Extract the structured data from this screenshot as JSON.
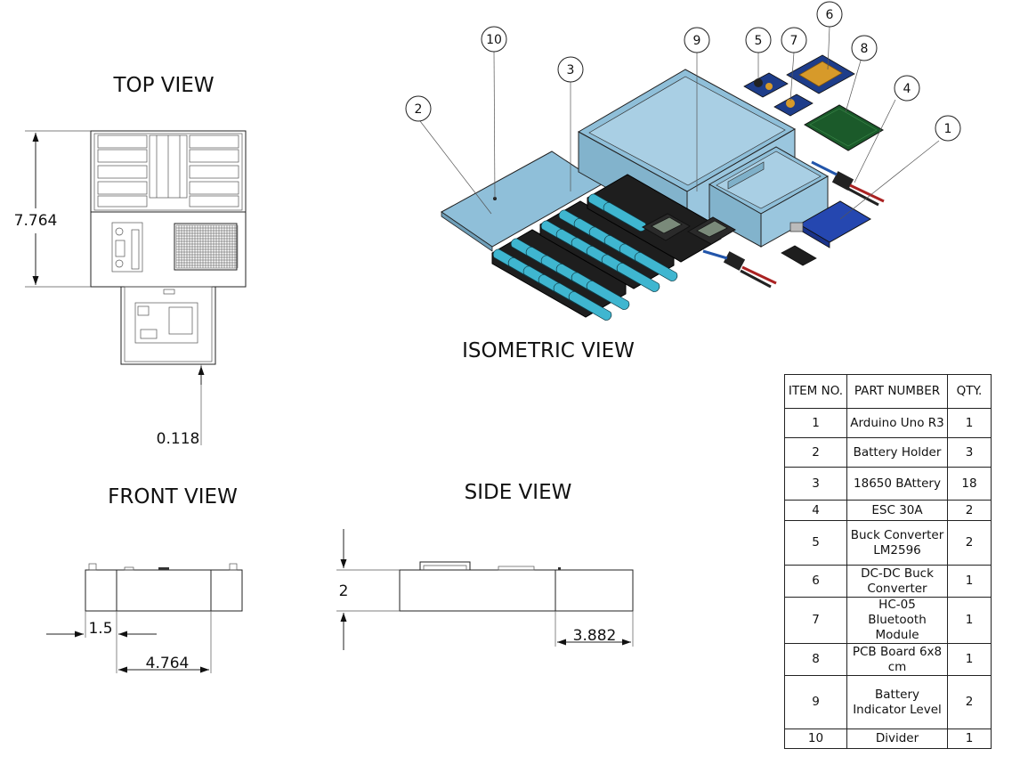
{
  "views": {
    "top": "TOP VIEW",
    "isometric": "ISOMETRIC VIEW",
    "front": "FRONT VIEW",
    "side": "SIDE VIEW"
  },
  "dimensions": {
    "top_height": "7.764",
    "top_offset": "0.118",
    "front_left": "1.5",
    "front_width": "4.764",
    "side_height": "2",
    "side_right": "3.882"
  },
  "balloons": [
    "1",
    "2",
    "3",
    "4",
    "5",
    "6",
    "7",
    "8",
    "9",
    "10"
  ],
  "bom": {
    "headers": {
      "item": "ITEM NO.",
      "part": "PART NUMBER",
      "qty": "QTY."
    },
    "rows": [
      {
        "item": "1",
        "part": "Arduino Uno R3",
        "qty": "1"
      },
      {
        "item": "2",
        "part": "Battery Holder",
        "qty": "3"
      },
      {
        "item": "3",
        "part": "18650 BAttery",
        "qty": "18"
      },
      {
        "item": "4",
        "part": "ESC 30A",
        "qty": "2"
      },
      {
        "item": "5",
        "part": "Buck Converter LM2596",
        "qty": "2"
      },
      {
        "item": "6",
        "part": "DC-DC Buck Converter",
        "qty": "1"
      },
      {
        "item": "7",
        "part": "HC-05 Bluetooth Module",
        "qty": "1"
      },
      {
        "item": "8",
        "part": "PCB Board 6x8 cm",
        "qty": "1"
      },
      {
        "item": "9",
        "part": "Battery Indicator Level",
        "qty": "2"
      },
      {
        "item": "10",
        "part": "Divider",
        "qty": "1"
      }
    ]
  },
  "colors": {
    "enclosure": "#8fbfd9",
    "cell": "#3fb6d0",
    "holder": "#1e1e1e",
    "arduino": "#2547b0",
    "pcb": "#1b5a2a",
    "converter": "#d79a2a"
  }
}
